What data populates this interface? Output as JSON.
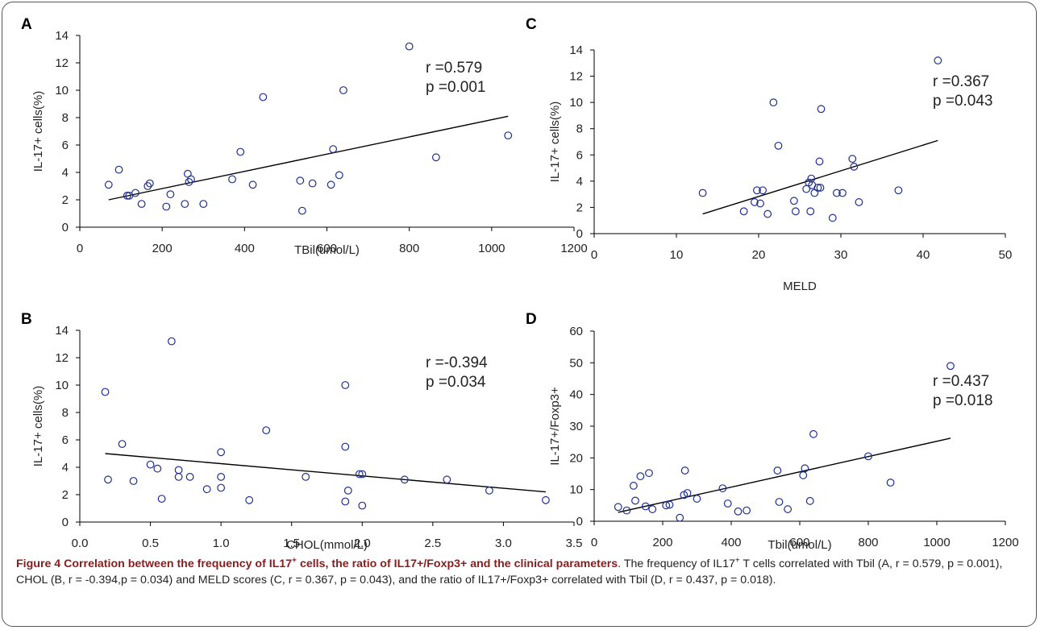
{
  "chart_data": [
    {
      "id": "A",
      "type": "scatter",
      "panel_label": "A",
      "xlabel": "TBil(umol/L)",
      "ylabel": "IL-17+ cells(%)",
      "xlim": [
        0,
        1200
      ],
      "ylim": [
        0,
        14
      ],
      "xticks": [
        0,
        200,
        400,
        600,
        800,
        1000,
        1200
      ],
      "yticks": [
        0,
        2,
        4,
        6,
        8,
        10,
        12,
        14
      ],
      "tick_decimals": 0,
      "annotation": [
        "r =0.579",
        "p =0.001"
      ],
      "trend": [
        [
          70,
          2.0
        ],
        [
          1040,
          8.1
        ]
      ],
      "points": [
        [
          70,
          3.1
        ],
        [
          95,
          4.2
        ],
        [
          115,
          2.3
        ],
        [
          120,
          2.3
        ],
        [
          135,
          2.5
        ],
        [
          150,
          1.7
        ],
        [
          165,
          3.0
        ],
        [
          170,
          3.2
        ],
        [
          210,
          1.5
        ],
        [
          220,
          2.4
        ],
        [
          255,
          1.7
        ],
        [
          262,
          3.9
        ],
        [
          265,
          3.3
        ],
        [
          270,
          3.5
        ],
        [
          300,
          1.7
        ],
        [
          370,
          3.5
        ],
        [
          390,
          5.5
        ],
        [
          420,
          3.1
        ],
        [
          445,
          9.5
        ],
        [
          535,
          3.4
        ],
        [
          540,
          1.2
        ],
        [
          565,
          3.2
        ],
        [
          610,
          3.1
        ],
        [
          615,
          5.7
        ],
        [
          630,
          3.8
        ],
        [
          640,
          10.0
        ],
        [
          800,
          13.2
        ],
        [
          865,
          5.1
        ],
        [
          1040,
          6.7
        ]
      ]
    },
    {
      "id": "B",
      "type": "scatter",
      "panel_label": "B",
      "xlabel": "CHOL(mmol/L)",
      "ylabel": "IL-17+ cells(%)",
      "xlim": [
        0,
        3.5
      ],
      "ylim": [
        0,
        14
      ],
      "xticks": [
        0,
        0.5,
        1,
        1.5,
        2,
        2.5,
        3,
        3.5
      ],
      "yticks": [
        0,
        2,
        4,
        6,
        8,
        10,
        12,
        14
      ],
      "tick_decimals": 1,
      "annotation": [
        "r =-0.394",
        "p =0.034"
      ],
      "trend": [
        [
          0.18,
          5.0
        ],
        [
          3.3,
          2.2
        ]
      ],
      "points": [
        [
          0.18,
          9.5
        ],
        [
          0.2,
          3.1
        ],
        [
          0.3,
          5.7
        ],
        [
          0.38,
          3.0
        ],
        [
          0.5,
          4.2
        ],
        [
          0.55,
          3.9
        ],
        [
          0.58,
          1.7
        ],
        [
          0.65,
          13.2
        ],
        [
          0.7,
          3.8
        ],
        [
          0.7,
          3.3
        ],
        [
          0.78,
          3.3
        ],
        [
          0.9,
          2.4
        ],
        [
          1.0,
          5.1
        ],
        [
          1.0,
          3.3
        ],
        [
          1.0,
          2.5
        ],
        [
          1.2,
          1.6
        ],
        [
          1.32,
          6.7
        ],
        [
          1.6,
          3.3
        ],
        [
          1.88,
          10.0
        ],
        [
          1.88,
          5.5
        ],
        [
          1.88,
          1.5
        ],
        [
          1.9,
          2.3
        ],
        [
          1.98,
          3.5
        ],
        [
          2.0,
          3.5
        ],
        [
          2.0,
          1.2
        ],
        [
          2.3,
          3.1
        ],
        [
          2.6,
          3.1
        ],
        [
          2.9,
          2.3
        ],
        [
          3.3,
          1.6
        ]
      ]
    },
    {
      "id": "C",
      "type": "scatter",
      "panel_label": "C",
      "xlabel": "MELD",
      "ylabel": "IL-17+ cells(%)",
      "xlim": [
        0,
        50
      ],
      "ylim": [
        0,
        14
      ],
      "xticks": [
        0,
        10,
        20,
        30,
        40,
        50
      ],
      "yticks": [
        0,
        2,
        4,
        6,
        8,
        10,
        12,
        14
      ],
      "tick_decimals": 0,
      "annotation": [
        "r =0.367",
        "p =0.043"
      ],
      "trend": [
        [
          13.2,
          1.5
        ],
        [
          41.8,
          7.1
        ]
      ],
      "points": [
        [
          13.2,
          3.1
        ],
        [
          18.2,
          1.7
        ],
        [
          19.5,
          2.4
        ],
        [
          19.8,
          3.3
        ],
        [
          20.2,
          2.3
        ],
        [
          20.5,
          3.3
        ],
        [
          21.1,
          1.5
        ],
        [
          21.8,
          10.0
        ],
        [
          22.4,
          6.7
        ],
        [
          24.3,
          2.5
        ],
        [
          24.5,
          1.7
        ],
        [
          25.8,
          3.4
        ],
        [
          26.1,
          3.9
        ],
        [
          26.3,
          1.7
        ],
        [
          26.4,
          4.2
        ],
        [
          26.5,
          3.7
        ],
        [
          26.8,
          3.1
        ],
        [
          27.2,
          3.5
        ],
        [
          27.5,
          3.5
        ],
        [
          27.4,
          5.5
        ],
        [
          27.6,
          9.5
        ],
        [
          29.0,
          1.2
        ],
        [
          29.5,
          3.1
        ],
        [
          30.2,
          3.1
        ],
        [
          31.4,
          5.7
        ],
        [
          31.6,
          5.1
        ],
        [
          32.2,
          2.4
        ],
        [
          37.0,
          3.3
        ],
        [
          41.8,
          13.2
        ]
      ]
    },
    {
      "id": "D",
      "type": "scatter",
      "panel_label": "D",
      "xlabel": "Tbil(umol/L)",
      "ylabel": "IL-17+/Foxp3+",
      "xlim": [
        0,
        1200
      ],
      "ylim": [
        0,
        60
      ],
      "xticks": [
        0,
        200,
        400,
        600,
        800,
        1000,
        1200
      ],
      "yticks": [
        0,
        10,
        20,
        30,
        40,
        50,
        60
      ],
      "tick_decimals": 0,
      "annotation": [
        "r =0.437",
        "p =0.018"
      ],
      "trend": [
        [
          70,
          2.8
        ],
        [
          1040,
          26.2
        ]
      ],
      "points": [
        [
          70,
          4.5
        ],
        [
          95,
          3.4
        ],
        [
          115,
          11.2
        ],
        [
          120,
          6.5
        ],
        [
          135,
          14.2
        ],
        [
          150,
          4.7
        ],
        [
          160,
          15.2
        ],
        [
          170,
          3.8
        ],
        [
          210,
          5.0
        ],
        [
          220,
          5.2
        ],
        [
          250,
          1.1
        ],
        [
          262,
          8.3
        ],
        [
          265,
          16.0
        ],
        [
          272,
          8.9
        ],
        [
          300,
          7.1
        ],
        [
          375,
          10.4
        ],
        [
          390,
          5.6
        ],
        [
          420,
          3.1
        ],
        [
          445,
          3.4
        ],
        [
          535,
          16.0
        ],
        [
          540,
          6.1
        ],
        [
          565,
          3.8
        ],
        [
          610,
          14.5
        ],
        [
          615,
          16.7
        ],
        [
          630,
          6.4
        ],
        [
          640,
          27.5
        ],
        [
          800,
          20.5
        ],
        [
          865,
          12.2
        ],
        [
          1040,
          49.0
        ]
      ]
    }
  ],
  "caption": {
    "title_prefix": "Figure 4 Correlation between the frequency of IL17",
    "title_sup": "+",
    "title_suffix": " cells, the ratio of IL17+/Foxp3+ and the clinical parameters",
    "title_end": ".",
    "body_1": " The frequency of IL17",
    "body_sup": "+",
    "body_2": " T cells correlated with Tbil (A, r = 0.579, p = 0.001), CHOL (B, r = -0.394,p = 0.034) and MELD scores (C, r = 0.367, p = 0.043), and the ratio of IL17+/Foxp3+ correlated with Tbil (D, r = 0.437, p = 0.018)."
  }
}
